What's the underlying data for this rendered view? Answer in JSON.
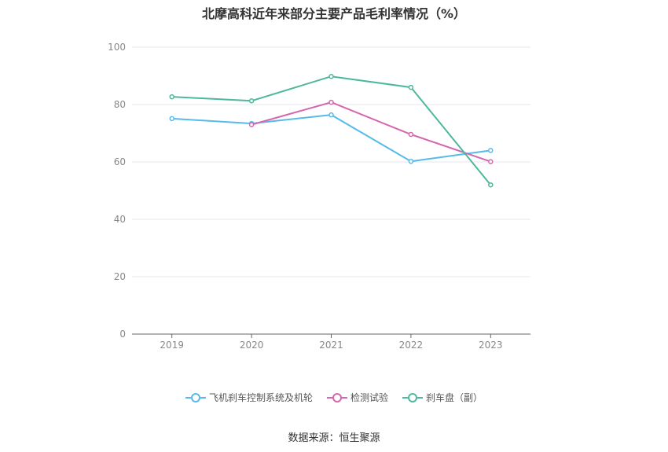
{
  "chart_data": {
    "type": "line",
    "title": "北摩高科近年来部分主要产品毛利率情况（%）",
    "categories": [
      "2019",
      "2020",
      "2021",
      "2022",
      "2023"
    ],
    "ylim": [
      0,
      100
    ],
    "yticks": [
      0,
      20,
      40,
      60,
      80,
      100
    ],
    "grid": true,
    "legend_position": "bottom",
    "series": [
      {
        "name": "飞机刹车控制系统及机轮",
        "color": "#56bbe9",
        "values": [
          75.1,
          73.4,
          76.4,
          60.2,
          64.0
        ]
      },
      {
        "name": "检测试验",
        "color": "#d467ad",
        "values": [
          null,
          73.0,
          80.8,
          69.6,
          60.1
        ]
      },
      {
        "name": "刹车盘（副）",
        "color": "#4cb89c",
        "values": [
          82.7,
          81.3,
          89.8,
          86.0,
          52.0
        ]
      }
    ]
  },
  "source": "数据来源：恒生聚源"
}
